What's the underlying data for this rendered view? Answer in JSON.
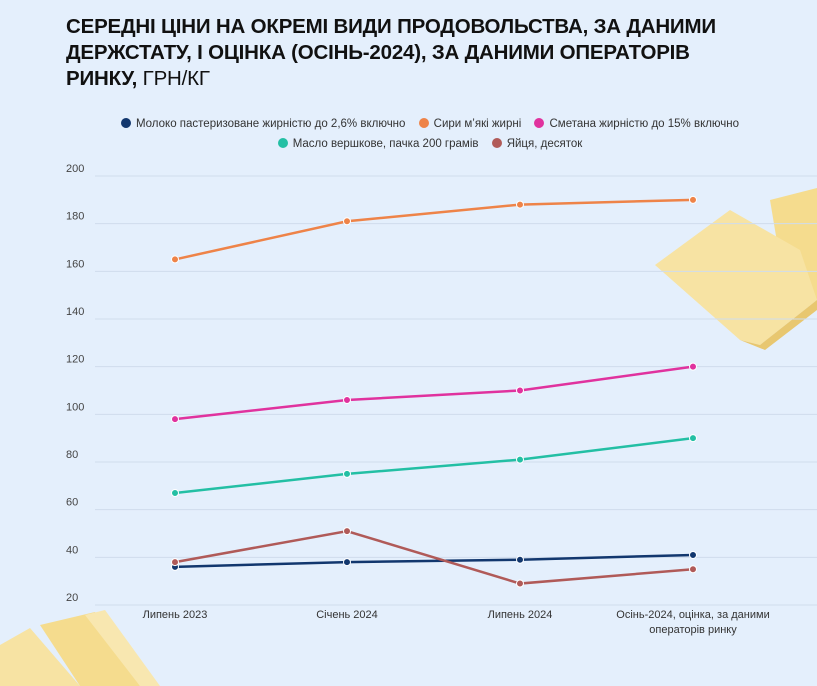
{
  "title": {
    "bold": "СЕРЕДНІ ЦІНИ НА ОКРЕМІ ВИДИ ПРОДОВОЛЬСТВА, ЗА ДАНИМИ ДЕРЖСТАТУ, І ОЦІНКА (ОСІНЬ-2024), ЗА ДАНИМИ ОПЕРАТОРІВ РИНКУ,",
    "unit": " ГРН/КГ"
  },
  "chart_data": {
    "type": "line",
    "title": "СЕРЕДНІ ЦІНИ НА ОКРЕМІ ВИДИ ПРОДОВОЛЬСТВА, ЗА ДАНИМИ ДЕРЖСТАТУ, І ОЦІНКА (ОСІНЬ-2024), ЗА ДАНИМИ ОПЕРАТОРІВ РИНКУ, ГРН/КГ",
    "categories": [
      "Липень 2023",
      "Січень 2024",
      "Липень 2024",
      "Осінь-2024, оцінка, за даними операторів ринку"
    ],
    "category_lines": [
      [
        "Липень 2023"
      ],
      [
        "Січень 2024"
      ],
      [
        "Липень 2024"
      ],
      [
        "Осінь-2024, оцінка, за даними",
        "операторів ринку"
      ]
    ],
    "ylim": [
      20,
      200
    ],
    "yticks": [
      20,
      40,
      60,
      80,
      100,
      120,
      140,
      160,
      180,
      200
    ],
    "grid": true,
    "legend_position": "top",
    "series": [
      {
        "name": "Молоко пастеризоване жирністю до 2,6% включно",
        "color": "#12376e",
        "values": [
          36,
          38,
          39,
          41
        ]
      },
      {
        "name": "Сири м’які жирні",
        "color": "#ee8348",
        "values": [
          165,
          181,
          188,
          190
        ]
      },
      {
        "name": "Сметана жирністю до 15% включно",
        "color": "#e0329e",
        "values": [
          98,
          106,
          110,
          120
        ]
      },
      {
        "name": "Масло вершкове, пачка 200 грамів",
        "color": "#23bfa4",
        "values": [
          67,
          75,
          81,
          90
        ]
      },
      {
        "name": "Яйця, десяток",
        "color": "#b05a58",
        "values": [
          38,
          51,
          29,
          35
        ]
      }
    ]
  }
}
